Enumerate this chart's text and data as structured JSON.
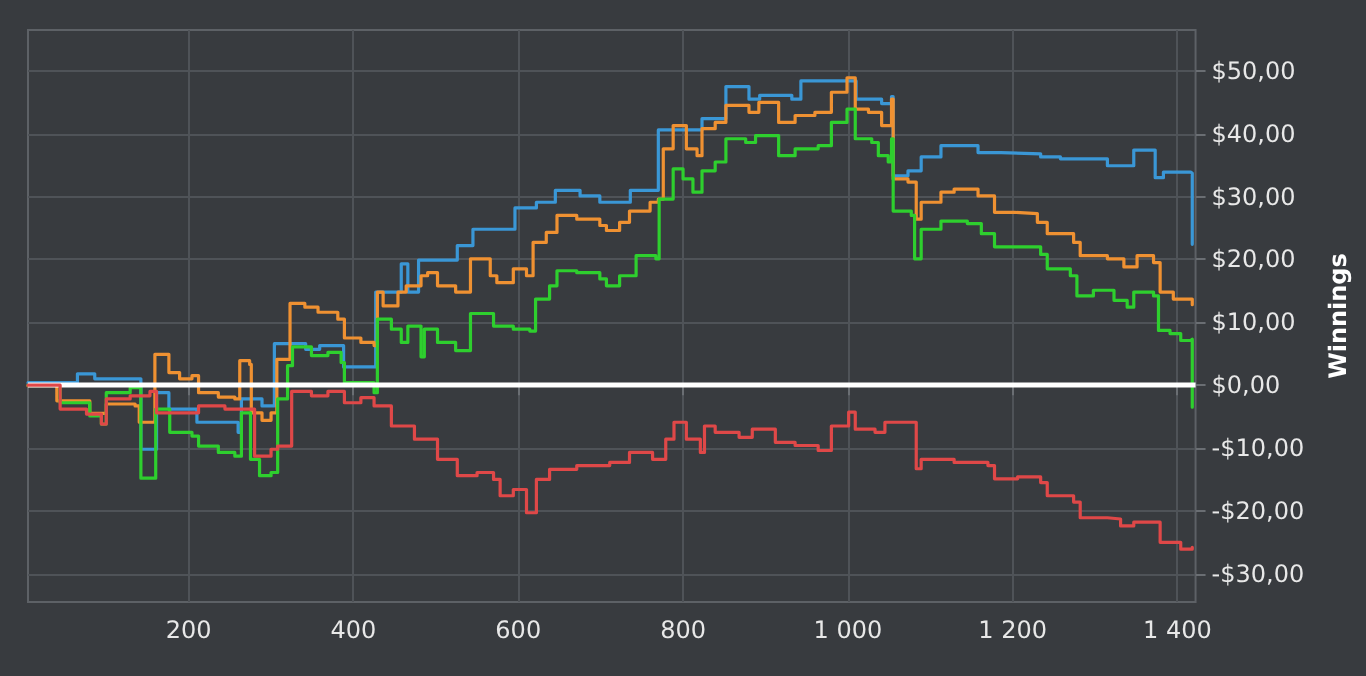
{
  "chart_data": {
    "type": "step",
    "ylabel": "Winnings",
    "xlim": [
      5,
      1422
    ],
    "ylim": [
      -34.5,
      56.5
    ],
    "xticks": [
      200,
      400,
      600,
      800,
      {
        "value": 1000,
        "label": "1 000"
      },
      {
        "value": 1200,
        "label": "1 200"
      },
      {
        "value": 1400,
        "label": "1 400"
      }
    ],
    "yticks": [
      {
        "value": -30,
        "label": "-$30,00"
      },
      {
        "value": -20,
        "label": "-$20,00"
      },
      {
        "value": -10,
        "label": "-$10,00"
      },
      {
        "value": 0,
        "label": "$0,00"
      },
      {
        "value": 10,
        "label": "$10,00"
      },
      {
        "value": 20,
        "label": "$20,00"
      },
      {
        "value": 30,
        "label": "$30,00"
      },
      {
        "value": 40,
        "label": "$40,00"
      },
      {
        "value": 50,
        "label": "$50,00"
      }
    ],
    "grid": true,
    "marker": "none",
    "line_style": "solid",
    "ref_lines": [
      {
        "axis": "y",
        "value": 0,
        "label": null,
        "color": "#ffffff",
        "line_style": "solid"
      }
    ],
    "series": [
      {
        "color": "#3a97d6",
        "x": [
          5,
          65,
          86,
          142,
          161,
          176,
          210,
          260,
          264,
          289,
          304,
          342,
          359,
          388,
          427,
          458,
          466,
          479,
          526,
          545,
          596,
          622,
          645,
          675,
          699,
          736,
          770,
          823,
          852,
          880,
          893,
          932,
          943,
          1010,
          1041,
          1053,
          1055,
          1073,
          1089,
          1113,
          1158,
          1186,
          1234,
          1258,
          1315,
          1347,
          1373,
          1383,
          1416,
          1418
        ],
        "values": [
          0.4,
          1.8,
          1.0,
          -10.2,
          -1.2,
          -3.8,
          -5.9,
          -7.5,
          -2.2,
          -3.3,
          6.6,
          5.7,
          6.3,
          2.9,
          14.8,
          19.3,
          14.8,
          19.9,
          22.2,
          24.8,
          28.2,
          29.1,
          31.0,
          30.1,
          29.1,
          31.0,
          40.6,
          42.4,
          47.5,
          45.5,
          46.1,
          45.5,
          48.4,
          45.5,
          44.8,
          45.9,
          33.3,
          34.1,
          36.3,
          38.1,
          37.0,
          36.8,
          36.3,
          36.0,
          34.9,
          37.4,
          33.0,
          33.9,
          33.7,
          22.4
        ]
      },
      {
        "color": "#ef9132",
        "x": [
          5,
          40,
          80,
          100,
          135,
          140,
          159,
          176,
          189,
          204,
          212,
          236,
          256,
          262,
          274,
          276,
          289,
          300,
          307,
          323,
          341,
          357,
          381,
          389,
          409,
          425,
          429,
          436,
          454,
          464,
          482,
          490,
          502,
          524,
          542,
          566,
          574,
          594,
          610,
          618,
          634,
          647,
          671,
          699,
          707,
          723,
          735,
          760,
          770,
          776,
          788,
          804,
          817,
          823,
          839,
          852,
          880,
          892,
          916,
          936,
          960,
          980,
          999,
          1009,
          1025,
          1041,
          1053,
          1055,
          1073,
          1083,
          1089,
          1113,
          1129,
          1158,
          1178,
          1202,
          1230,
          1242,
          1274,
          1282,
          1315,
          1335,
          1351,
          1371,
          1379,
          1395,
          1418
        ],
        "values": [
          -0.1,
          -2.5,
          -4.5,
          -3.0,
          -3.3,
          -5.9,
          4.9,
          2.0,
          1.0,
          1.5,
          -1.2,
          -1.9,
          -2.2,
          3.9,
          3.3,
          -4.4,
          -5.6,
          -4.4,
          4.1,
          13.0,
          12.4,
          11.6,
          10.5,
          7.5,
          6.8,
          6.3,
          14.8,
          12.6,
          14.8,
          15.8,
          17.4,
          17.9,
          15.8,
          14.8,
          20.1,
          17.4,
          16.3,
          18.5,
          17.4,
          22.7,
          24.3,
          27.0,
          26.4,
          25.4,
          24.6,
          25.9,
          27.7,
          29.1,
          29.6,
          37.6,
          41.3,
          37.6,
          36.5,
          40.8,
          41.8,
          44.5,
          43.4,
          45.0,
          41.8,
          42.9,
          43.4,
          46.6,
          48.9,
          43.9,
          43.4,
          41.3,
          45.5,
          32.8,
          32.3,
          26.4,
          29.1,
          30.7,
          31.2,
          30.1,
          27.5,
          27.3,
          25.9,
          24.1,
          22.7,
          20.6,
          20.1,
          18.8,
          20.6,
          19.5,
          14.8,
          13.7,
          12.8
        ]
      },
      {
        "color": "#2ecf2e",
        "x": [
          5,
          44,
          80,
          94,
          100,
          129,
          142,
          160,
          177,
          204,
          212,
          236,
          256,
          264,
          275,
          286,
          300,
          308,
          320,
          326,
          349,
          369,
          385,
          389,
          425,
          429,
          446,
          458,
          466,
          482,
          486,
          502,
          524,
          542,
          570,
          594,
          614,
          621,
          638,
          647,
          671,
          699,
          707,
          723,
          743,
          767,
          771,
          788,
          800,
          812,
          823,
          839,
          852,
          876,
          888,
          916,
          936,
          964,
          980,
          999,
          1009,
          1029,
          1037,
          1049,
          1053,
          1055,
          1077,
          1081,
          1089,
          1113,
          1145,
          1162,
          1178,
          1206,
          1234,
          1242,
          1270,
          1278,
          1298,
          1323,
          1339,
          1347,
          1371,
          1377,
          1391,
          1404,
          1416,
          1418
        ],
        "values": [
          0,
          -2.8,
          -4.9,
          -6.2,
          -1.2,
          -0.4,
          -14.8,
          -3.8,
          -7.5,
          -8.1,
          -9.7,
          -10.7,
          -11.3,
          -4.4,
          -11.8,
          -14.4,
          -13.9,
          -2.2,
          3.1,
          6.1,
          4.7,
          5.2,
          3.6,
          0.4,
          -1.2,
          10.5,
          8.9,
          6.8,
          9.4,
          4.5,
          8.9,
          6.8,
          5.5,
          11.4,
          9.4,
          8.9,
          8.6,
          13.7,
          15.8,
          18.2,
          17.9,
          16.9,
          15.8,
          17.4,
          20.6,
          20.1,
          29.6,
          34.4,
          32.8,
          30.7,
          34.1,
          35.5,
          39.2,
          38.6,
          39.7,
          36.5,
          37.6,
          38.1,
          41.8,
          43.9,
          39.2,
          38.6,
          36.5,
          35.5,
          39.2,
          27.7,
          27.0,
          20.1,
          24.8,
          26.1,
          25.7,
          24.1,
          22.0,
          22.0,
          20.8,
          18.5,
          17.4,
          14.2,
          15.1,
          13.5,
          12.4,
          14.8,
          14.2,
          8.7,
          8.2,
          7.1,
          7.3,
          -3.5
        ]
      },
      {
        "color": "#df4848",
        "x": [
          5,
          44,
          76,
          94,
          100,
          129,
          153,
          161,
          212,
          244,
          280,
          300,
          308,
          325,
          349,
          369,
          389,
          409,
          425,
          446,
          474,
          502,
          526,
          550,
          570,
          578,
          594,
          610,
          614,
          622,
          638,
          671,
          711,
          735,
          763,
          779,
          789,
          804,
          821,
          826,
          839,
          868,
          884,
          912,
          936,
          964,
          980,
          1001,
          1009,
          1033,
          1045,
          1073,
          1083,
          1089,
          1129,
          1170,
          1178,
          1206,
          1234,
          1242,
          1274,
          1282,
          1315,
          1331,
          1347,
          1379,
          1404,
          1418
        ],
        "values": [
          0,
          -3.8,
          -4.6,
          -6.2,
          -2.2,
          -1.7,
          -1.0,
          -4.4,
          -3.3,
          -3.8,
          -11.3,
          -10.2,
          -9.7,
          -1.0,
          -1.7,
          -1.0,
          -2.8,
          -2.0,
          -3.3,
          -6.5,
          -8.6,
          -11.8,
          -14.4,
          -13.9,
          -15.0,
          -17.6,
          -16.6,
          -20.3,
          -20.3,
          -15.0,
          -13.4,
          -12.8,
          -12.3,
          -10.7,
          -11.8,
          -8.6,
          -5.9,
          -8.6,
          -10.7,
          -6.5,
          -7.5,
          -8.3,
          -7.0,
          -9.1,
          -9.6,
          -10.4,
          -6.5,
          -4.3,
          -7.0,
          -7.5,
          -5.9,
          -5.9,
          -13.3,
          -11.8,
          -12.3,
          -12.8,
          -14.9,
          -14.6,
          -15.5,
          -17.6,
          -18.6,
          -21.1,
          -21.3,
          -22.4,
          -21.8,
          -25.0,
          -26.1,
          -25.8
        ]
      }
    ]
  }
}
